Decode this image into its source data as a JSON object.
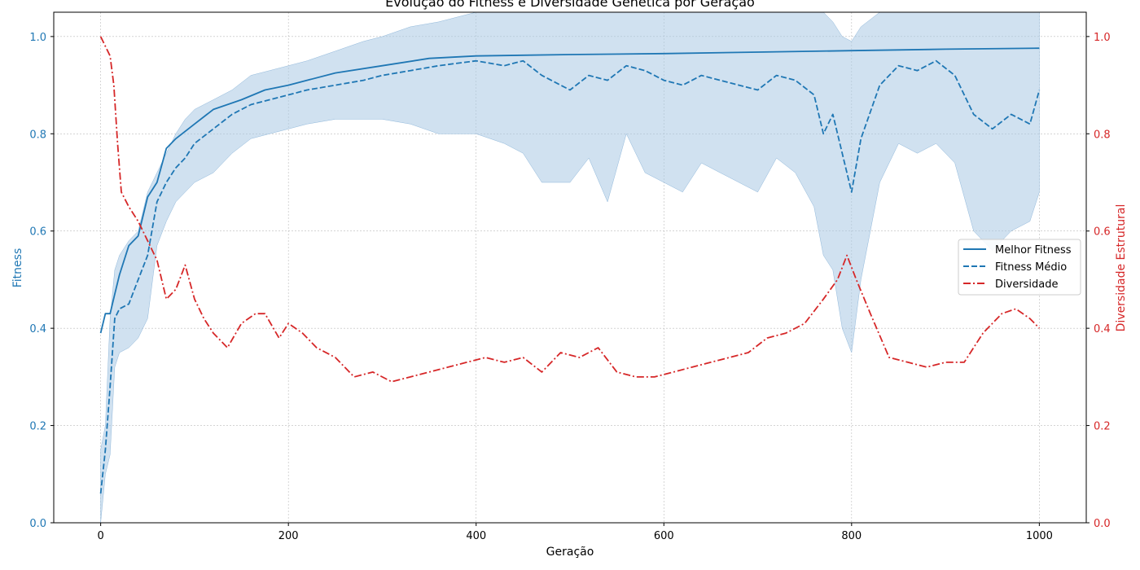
{
  "chart_data": {
    "type": "line",
    "title": "Evolução do Fitness e Diversidade Genética por Geração",
    "xlabel": "Geração",
    "ylabel_left": "Fitness",
    "ylabel_right": "Diversidade Estrutural",
    "xlim": [
      -50,
      1050
    ],
    "ylim_left": [
      0,
      1.05
    ],
    "ylim_right": [
      0,
      1.05
    ],
    "x_ticks": [
      0,
      200,
      400,
      600,
      800,
      1000
    ],
    "y_ticks_left": [
      0.0,
      0.2,
      0.4,
      0.6,
      0.8,
      1.0
    ],
    "y_ticks_right": [
      0.0,
      0.2,
      0.4,
      0.6,
      0.8,
      1.0
    ],
    "grid": true,
    "legend_position": "center-right",
    "colors": {
      "fitness": "#1f77b4",
      "diversity": "#d62728",
      "band": "#a9c9e4"
    },
    "series": [
      {
        "name": "Melhor Fitness",
        "axis": "left",
        "style": "solid",
        "x": [
          0,
          5,
          10,
          15,
          20,
          30,
          40,
          50,
          60,
          70,
          80,
          100,
          120,
          150,
          175,
          200,
          250,
          300,
          350,
          400,
          500,
          600,
          700,
          800,
          900,
          1000
        ],
        "y": [
          0.39,
          0.43,
          0.43,
          0.47,
          0.51,
          0.57,
          0.59,
          0.67,
          0.7,
          0.77,
          0.79,
          0.82,
          0.85,
          0.87,
          0.89,
          0.9,
          0.925,
          0.94,
          0.955,
          0.96,
          0.963,
          0.965,
          0.968,
          0.971,
          0.974,
          0.976
        ]
      },
      {
        "name": "Fitness Médio",
        "axis": "left",
        "style": "dashed",
        "x": [
          0,
          5,
          10,
          15,
          20,
          30,
          40,
          50,
          60,
          70,
          80,
          90,
          100,
          120,
          140,
          160,
          180,
          200,
          220,
          250,
          280,
          300,
          330,
          360,
          400,
          430,
          450,
          470,
          500,
          520,
          540,
          560,
          580,
          600,
          620,
          640,
          660,
          680,
          700,
          720,
          740,
          760,
          770,
          780,
          790,
          800,
          810,
          830,
          850,
          870,
          890,
          910,
          930,
          950,
          970,
          990,
          1000
        ],
        "y": [
          0.06,
          0.15,
          0.28,
          0.42,
          0.44,
          0.45,
          0.5,
          0.55,
          0.66,
          0.7,
          0.73,
          0.75,
          0.78,
          0.81,
          0.84,
          0.86,
          0.87,
          0.88,
          0.89,
          0.9,
          0.91,
          0.92,
          0.93,
          0.94,
          0.95,
          0.94,
          0.95,
          0.92,
          0.89,
          0.92,
          0.91,
          0.94,
          0.93,
          0.91,
          0.9,
          0.92,
          0.91,
          0.9,
          0.89,
          0.92,
          0.91,
          0.88,
          0.8,
          0.84,
          0.76,
          0.68,
          0.79,
          0.9,
          0.94,
          0.93,
          0.95,
          0.92,
          0.84,
          0.81,
          0.84,
          0.82,
          0.89
        ]
      },
      {
        "name": "Diversidade",
        "axis": "right",
        "style": "dashdot",
        "x": [
          0,
          5,
          10,
          14,
          18,
          22,
          30,
          40,
          45,
          50,
          60,
          70,
          80,
          90,
          100,
          110,
          120,
          135,
          150,
          165,
          175,
          190,
          200,
          215,
          230,
          250,
          270,
          290,
          310,
          330,
          350,
          370,
          390,
          410,
          430,
          450,
          470,
          490,
          510,
          530,
          550,
          570,
          590,
          610,
          630,
          650,
          670,
          690,
          710,
          730,
          750,
          770,
          785,
          795,
          805,
          820,
          840,
          860,
          880,
          900,
          920,
          940,
          960,
          975,
          990,
          1000
        ],
        "y": [
          1.0,
          0.98,
          0.96,
          0.9,
          0.78,
          0.68,
          0.65,
          0.62,
          0.6,
          0.58,
          0.54,
          0.46,
          0.48,
          0.53,
          0.46,
          0.42,
          0.39,
          0.36,
          0.41,
          0.43,
          0.43,
          0.38,
          0.41,
          0.39,
          0.36,
          0.34,
          0.3,
          0.31,
          0.29,
          0.3,
          0.31,
          0.32,
          0.33,
          0.34,
          0.33,
          0.34,
          0.31,
          0.35,
          0.34,
          0.36,
          0.31,
          0.3,
          0.3,
          0.31,
          0.32,
          0.33,
          0.34,
          0.35,
          0.38,
          0.39,
          0.41,
          0.46,
          0.5,
          0.55,
          0.5,
          0.43,
          0.34,
          0.33,
          0.32,
          0.33,
          0.33,
          0.39,
          0.43,
          0.44,
          0.42,
          0.4
        ]
      }
    ],
    "band": {
      "axis": "left",
      "x": [
        0,
        5,
        10,
        15,
        20,
        30,
        40,
        50,
        60,
        70,
        80,
        90,
        100,
        120,
        140,
        160,
        180,
        200,
        220,
        250,
        280,
        300,
        330,
        360,
        400,
        430,
        450,
        470,
        500,
        520,
        540,
        560,
        580,
        600,
        620,
        640,
        660,
        680,
        700,
        720,
        740,
        760,
        770,
        780,
        790,
        800,
        810,
        830,
        850,
        870,
        890,
        910,
        930,
        950,
        970,
        990,
        1000
      ],
      "upper": [
        0.15,
        0.2,
        0.42,
        0.52,
        0.55,
        0.58,
        0.6,
        0.68,
        0.72,
        0.76,
        0.8,
        0.83,
        0.85,
        0.87,
        0.89,
        0.92,
        0.93,
        0.94,
        0.95,
        0.97,
        0.99,
        1.0,
        1.02,
        1.03,
        1.05,
        1.05,
        1.05,
        1.05,
        1.05,
        1.05,
        1.05,
        1.05,
        1.05,
        1.05,
        1.05,
        1.05,
        1.05,
        1.05,
        1.05,
        1.05,
        1.05,
        1.05,
        1.05,
        1.03,
        1.0,
        0.99,
        1.02,
        1.05,
        1.05,
        1.05,
        1.05,
        1.05,
        1.05,
        1.05,
        1.05,
        1.05,
        1.05
      ],
      "lower": [
        0.0,
        0.1,
        0.14,
        0.32,
        0.35,
        0.36,
        0.38,
        0.42,
        0.57,
        0.62,
        0.66,
        0.68,
        0.7,
        0.72,
        0.76,
        0.79,
        0.8,
        0.81,
        0.82,
        0.83,
        0.83,
        0.83,
        0.82,
        0.8,
        0.8,
        0.78,
        0.76,
        0.7,
        0.7,
        0.75,
        0.66,
        0.8,
        0.72,
        0.7,
        0.68,
        0.74,
        0.72,
        0.7,
        0.68,
        0.75,
        0.72,
        0.65,
        0.55,
        0.52,
        0.4,
        0.35,
        0.5,
        0.7,
        0.78,
        0.76,
        0.78,
        0.74,
        0.6,
        0.56,
        0.6,
        0.62,
        0.68
      ]
    }
  }
}
